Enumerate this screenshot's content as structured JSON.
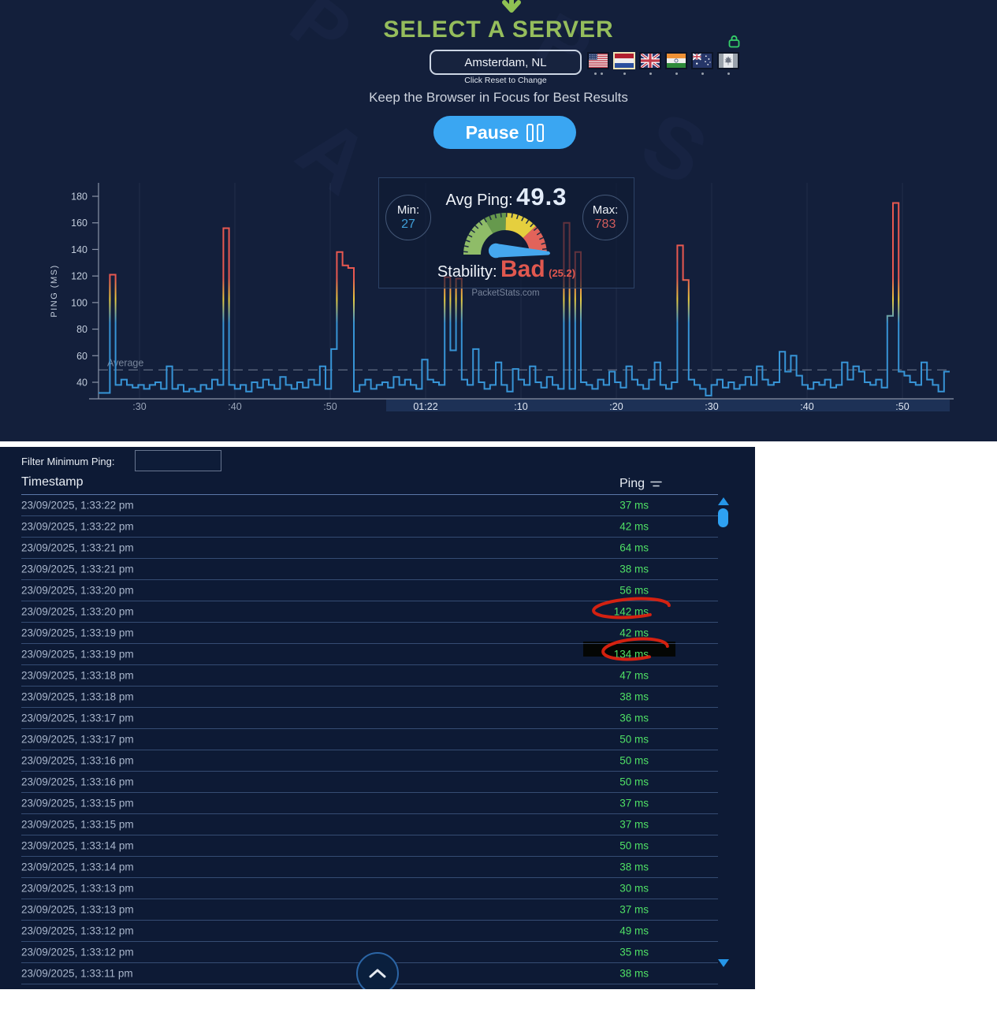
{
  "header": {
    "title": "SELECT A SERVER",
    "server_box": {
      "value": "Amsterdam, NL",
      "hint": "Click Reset to Change"
    },
    "flags": [
      {
        "name": "usa",
        "dots": 2,
        "selected": false
      },
      {
        "name": "netherlands",
        "dots": 1,
        "selected": true
      },
      {
        "name": "united-kingdom",
        "dots": 1,
        "selected": false
      },
      {
        "name": "india",
        "dots": 1,
        "selected": false
      },
      {
        "name": "australia",
        "dots": 1,
        "selected": false
      },
      {
        "name": "canada",
        "dots": 1,
        "selected": false,
        "locked": true
      }
    ],
    "focus_note": "Keep the Browser in Focus for Best Results",
    "pause_button_label": "Pause"
  },
  "stats": {
    "avg_label": "Avg Ping:",
    "avg_value": "49.3",
    "min_label": "Min:",
    "min_value": "27",
    "max_label": "Max:",
    "max_value": "783",
    "stability_label": "Stability:",
    "stability_value": "Bad",
    "stability_score": "(25.2)",
    "brand": "PacketStats.com"
  },
  "chart_data": {
    "type": "line",
    "title": "",
    "xlabel": "",
    "ylabel": "PING (MS)",
    "y_ticks": [
      40,
      60,
      80,
      100,
      120,
      140,
      160,
      180
    ],
    "ylim": [
      28,
      190
    ],
    "x_tick_labels": [
      ":30",
      ":40",
      ":50",
      "01:22",
      ":10",
      ":20",
      ":30",
      ":40",
      ":50"
    ],
    "average_label": "Average",
    "average_value": 49.3,
    "grid": "vertical-only",
    "legend": "none",
    "series": [
      {
        "name": "ping_ms",
        "values": [
          32,
          32,
          121,
          38,
          42,
          38,
          36,
          38,
          35,
          38,
          40,
          35,
          52,
          35,
          38,
          33,
          35,
          33,
          38,
          35,
          42,
          38,
          156,
          38,
          35,
          38,
          33,
          40,
          36,
          42,
          38,
          35,
          44,
          38,
          35,
          40,
          36,
          42,
          38,
          52,
          35,
          65,
          138,
          128,
          126,
          33,
          38,
          42,
          35,
          38,
          40,
          36,
          44,
          38,
          42,
          38,
          35,
          57,
          42,
          40,
          38,
          119,
          64,
          118,
          42,
          38,
          65,
          40,
          35,
          38,
          55,
          38,
          33,
          50,
          42,
          38,
          52,
          40,
          36,
          44,
          38,
          35,
          160,
          35,
          138,
          40,
          38,
          35,
          42,
          38,
          48,
          40,
          36,
          52,
          42,
          38,
          35,
          42,
          55,
          38,
          35,
          40,
          143,
          117,
          42,
          38,
          35,
          30,
          38,
          42,
          36,
          40,
          35,
          38,
          44,
          38,
          52,
          42,
          38,
          40,
          63,
          48,
          60,
          45,
          38,
          35,
          40,
          38,
          42,
          36,
          38,
          55,
          42,
          52,
          48,
          40,
          38,
          42,
          36,
          90,
          175,
          48,
          45,
          40,
          38,
          55,
          42,
          38,
          33,
          48
        ]
      }
    ]
  },
  "table": {
    "filter_label": "Filter Minimum Ping:",
    "filter_value": "",
    "columns": {
      "timestamp": "Timestamp",
      "ping": "Ping"
    },
    "rows": [
      {
        "t": "23/09/2025, 1:33:22 pm",
        "p": "37 ms"
      },
      {
        "t": "23/09/2025, 1:33:22 pm",
        "p": "42 ms"
      },
      {
        "t": "23/09/2025, 1:33:21 pm",
        "p": "64 ms"
      },
      {
        "t": "23/09/2025, 1:33:21 pm",
        "p": "38 ms"
      },
      {
        "t": "23/09/2025, 1:33:20 pm",
        "p": "56 ms"
      },
      {
        "t": "23/09/2025, 1:33:20 pm",
        "p": "142 ms"
      },
      {
        "t": "23/09/2025, 1:33:19 pm",
        "p": "42 ms"
      },
      {
        "t": "23/09/2025, 1:33:19 pm",
        "p": "134 ms"
      },
      {
        "t": "23/09/2025, 1:33:18 pm",
        "p": "47 ms"
      },
      {
        "t": "23/09/2025, 1:33:18 pm",
        "p": "38 ms"
      },
      {
        "t": "23/09/2025, 1:33:17 pm",
        "p": "36 ms"
      },
      {
        "t": "23/09/2025, 1:33:17 pm",
        "p": "50 ms"
      },
      {
        "t": "23/09/2025, 1:33:16 pm",
        "p": "50 ms"
      },
      {
        "t": "23/09/2025, 1:33:16 pm",
        "p": "50 ms"
      },
      {
        "t": "23/09/2025, 1:33:15 pm",
        "p": "37 ms"
      },
      {
        "t": "23/09/2025, 1:33:15 pm",
        "p": "37 ms"
      },
      {
        "t": "23/09/2025, 1:33:14 pm",
        "p": "50 ms"
      },
      {
        "t": "23/09/2025, 1:33:14 pm",
        "p": "38 ms"
      },
      {
        "t": "23/09/2025, 1:33:13 pm",
        "p": "30 ms"
      },
      {
        "t": "23/09/2025, 1:33:13 pm",
        "p": "37 ms"
      },
      {
        "t": "23/09/2025, 1:33:12 pm",
        "p": "49 ms"
      },
      {
        "t": "23/09/2025, 1:33:12 pm",
        "p": "35 ms"
      },
      {
        "t": "23/09/2025, 1:33:11 pm",
        "p": "38 ms"
      }
    ],
    "annotations": {
      "red_circled_rows": [
        5,
        7
      ],
      "black_highlight_rows": [
        7
      ]
    }
  },
  "watermark": {
    "letters": [
      "P",
      "A",
      "S",
      "P"
    ]
  },
  "colors": {
    "top_bg": "#131f3b",
    "table_bg": "#0d1a35",
    "accent_green": "#95bd5c",
    "pause_blue": "#3aa6f2",
    "line_blue": "#3794d6",
    "spike_yellow": "#e6c93e",
    "spike_red": "#e85850",
    "ping_green": "#4fe065",
    "annotation_red": "#e3220f",
    "min_blue": "#3f9fd8",
    "max_red": "#d05c5c"
  }
}
